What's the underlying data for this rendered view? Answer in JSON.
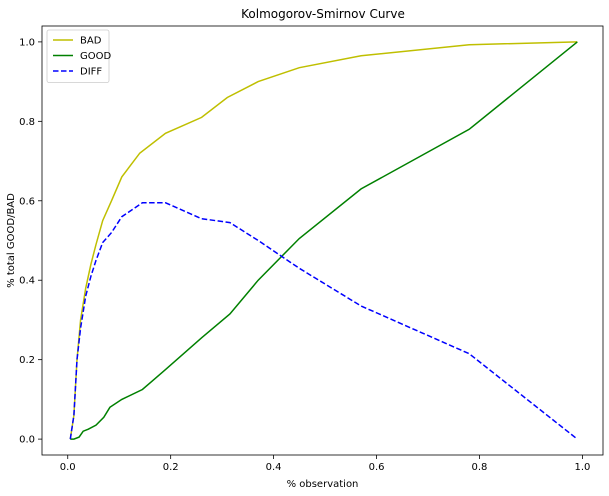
{
  "chart_data": {
    "type": "line",
    "title": "Kolmogorov-Smirnov Curve",
    "xlabel": "% observation",
    "ylabel": "% total GOOD/BAD",
    "xlim": [
      -0.05,
      1.04
    ],
    "ylim": [
      -0.04,
      1.04
    ],
    "xticks": [
      0.0,
      0.2,
      0.4,
      0.6,
      0.8,
      1.0
    ],
    "xtick_labels": [
      "0.0",
      "0.2",
      "0.4",
      "0.6",
      "0.8",
      "1.0"
    ],
    "yticks": [
      0.0,
      0.2,
      0.4,
      0.6,
      0.8,
      1.0
    ],
    "ytick_labels": [
      "0.0",
      "0.2",
      "0.4",
      "0.6",
      "0.8",
      "1.0"
    ],
    "grid": false,
    "legend_position": "top-left",
    "series": [
      {
        "name": "BAD",
        "color": "#bfbf00",
        "dash": "solid",
        "x": [
          0.005,
          0.012,
          0.018,
          0.025,
          0.035,
          0.045,
          0.055,
          0.068,
          0.085,
          0.105,
          0.14,
          0.19,
          0.26,
          0.31,
          0.37,
          0.45,
          0.57,
          0.78,
          0.99
        ],
        "y": [
          0.0,
          0.06,
          0.2,
          0.3,
          0.38,
          0.44,
          0.49,
          0.55,
          0.6,
          0.66,
          0.72,
          0.77,
          0.81,
          0.86,
          0.9,
          0.935,
          0.965,
          0.993,
          1.0
        ]
      },
      {
        "name": "GOOD",
        "color": "#008000",
        "dash": "solid",
        "x": [
          0.005,
          0.012,
          0.022,
          0.03,
          0.04,
          0.055,
          0.07,
          0.082,
          0.105,
          0.145,
          0.19,
          0.26,
          0.315,
          0.37,
          0.45,
          0.57,
          0.78,
          0.99
        ],
        "y": [
          0.0,
          0.0,
          0.005,
          0.02,
          0.025,
          0.035,
          0.055,
          0.08,
          0.1,
          0.125,
          0.175,
          0.255,
          0.315,
          0.4,
          0.505,
          0.63,
          0.78,
          1.0
        ]
      },
      {
        "name": "DIFF",
        "color": "#0000ff",
        "dash": "dashed",
        "x": [
          0.005,
          0.012,
          0.018,
          0.025,
          0.035,
          0.045,
          0.055,
          0.068,
          0.085,
          0.105,
          0.145,
          0.19,
          0.26,
          0.315,
          0.37,
          0.45,
          0.57,
          0.78,
          0.99
        ],
        "y": [
          0.0,
          0.06,
          0.2,
          0.28,
          0.36,
          0.41,
          0.45,
          0.495,
          0.52,
          0.56,
          0.595,
          0.595,
          0.555,
          0.545,
          0.5,
          0.43,
          0.335,
          0.215,
          0.0
        ]
      }
    ]
  }
}
